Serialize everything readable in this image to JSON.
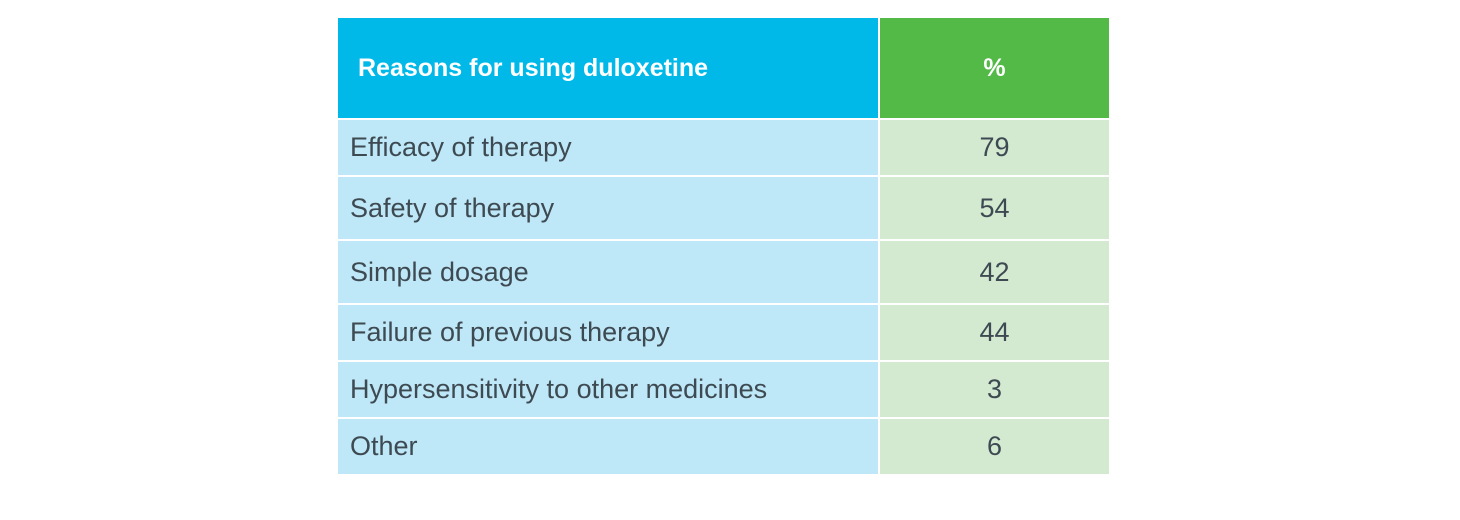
{
  "table": {
    "header": {
      "reason_label": "Reasons for using duloxetine",
      "percent_label": "%"
    },
    "rows": [
      {
        "reason": "Efficacy of therapy",
        "percent": "79"
      },
      {
        "reason": "Safety of therapy",
        "percent": "54"
      },
      {
        "reason": "Simple dosage",
        "percent": "42"
      },
      {
        "reason": "Failure of previous therapy",
        "percent": "44"
      },
      {
        "reason": "Hypersensitivity to other medicines",
        "percent": "3"
      },
      {
        "reason": "Other",
        "percent": "6"
      }
    ]
  },
  "colors": {
    "header_reason_bg": "#00b9e8",
    "header_percent_bg": "#53b947",
    "body_reason_bg": "#bee7f7",
    "body_percent_bg": "#d3ead1",
    "body_text": "#3e4a52"
  }
}
